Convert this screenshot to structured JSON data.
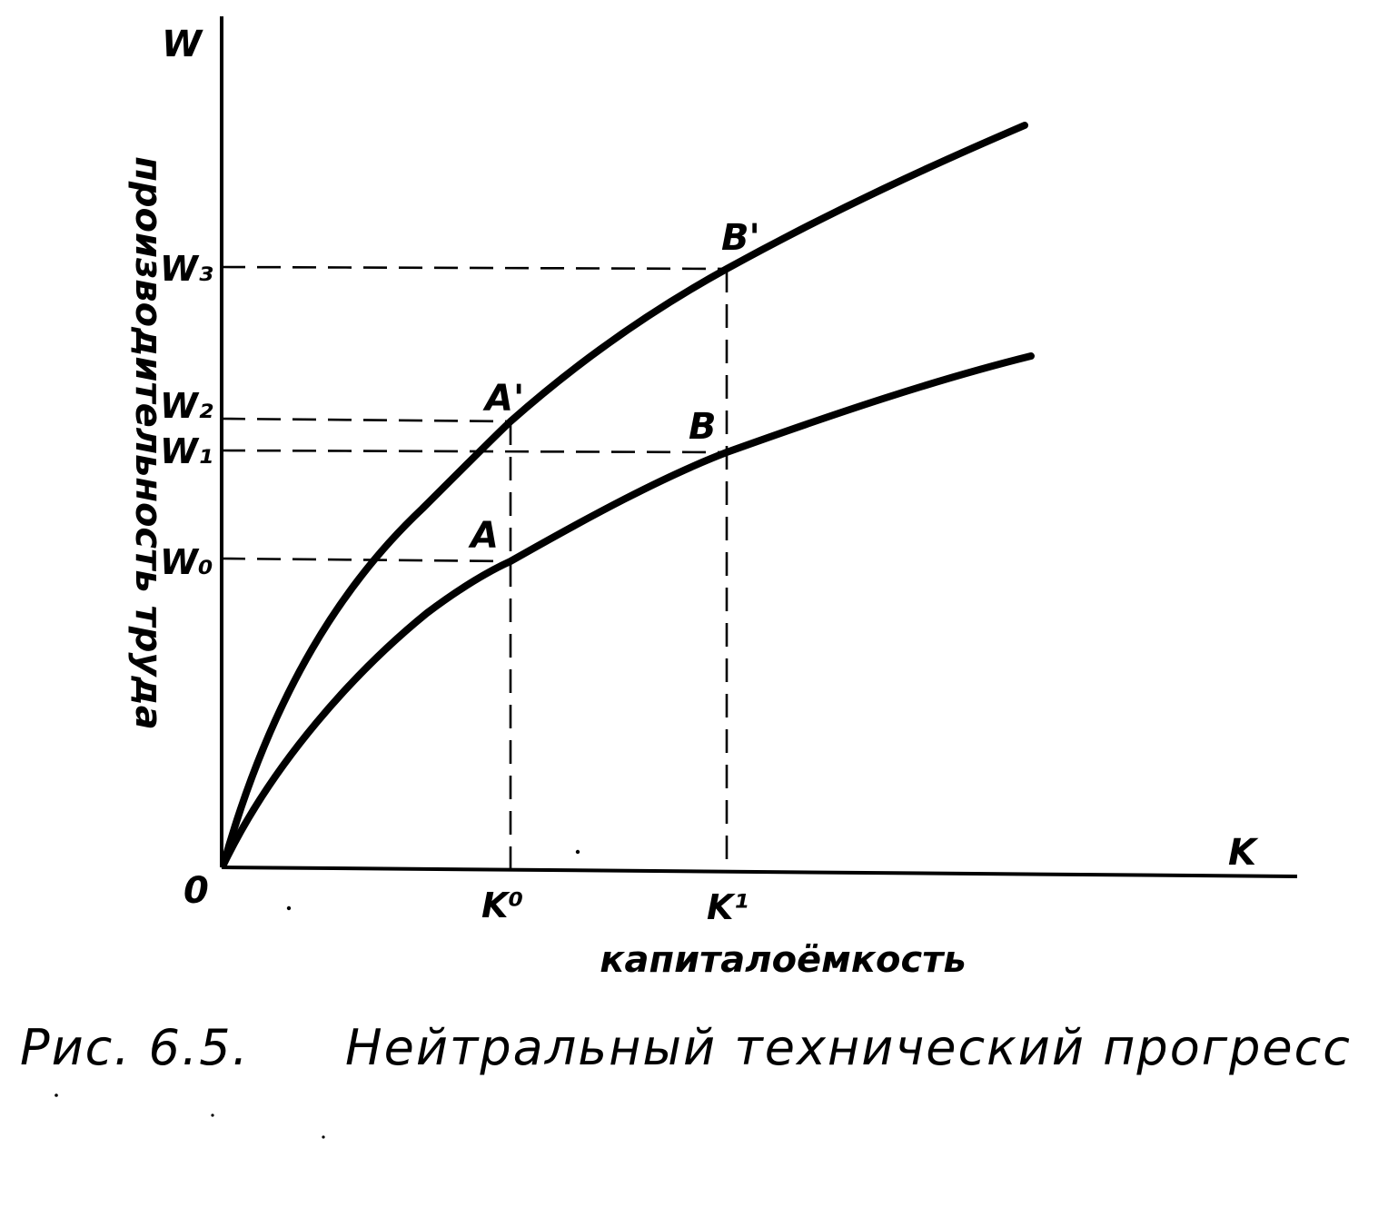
{
  "figure": {
    "caption_number": "Рис. 6.5.",
    "caption_title": "Нейтральный технический прогресс"
  },
  "axes": {
    "y_symbol": "W",
    "x_symbol": "K",
    "origin": "0",
    "y_label": "производительность труда",
    "x_label": "капиталоёмкость"
  },
  "ticks": {
    "x": [
      "K⁰",
      "K¹"
    ],
    "y": [
      "W₀",
      "W₁",
      "W₂",
      "W₃"
    ]
  },
  "points": {
    "A": "A",
    "B": "B",
    "A_prime": "A'",
    "B_prime": "B'"
  }
}
